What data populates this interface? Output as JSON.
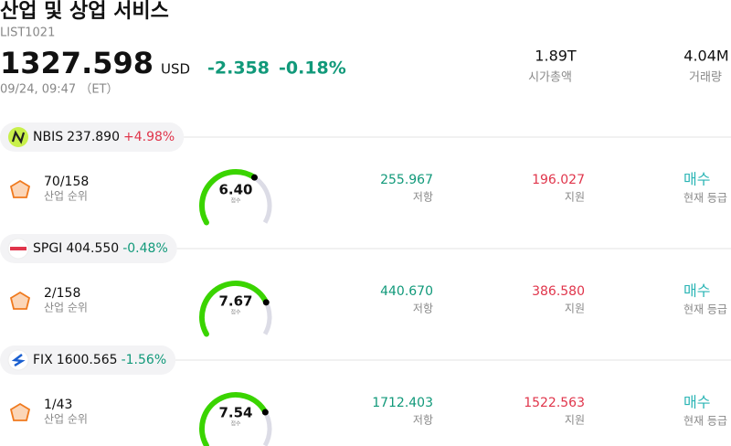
{
  "header": {
    "title": "산업 및 상업 서비스",
    "ticker": "LIST1021",
    "price": "1327.598",
    "currency": "USD",
    "change": "-2.358",
    "change_pct": "-0.18%",
    "timestamp": "09/24, 09:47 （ET）",
    "stats": [
      {
        "value": "1.89T",
        "label": "시가총액"
      },
      {
        "value": "4.04M",
        "label": "거래량"
      }
    ]
  },
  "score_range": [
    0,
    10
  ],
  "rows": [
    {
      "symbol": "NBIS",
      "price": "237.890",
      "change": "+4.98%",
      "rank": "70/158",
      "rank_label": "산업 순위",
      "score": {
        "value": 6.4,
        "label": "6.40"
      },
      "score_label": "점수",
      "resistance": "255.967",
      "resistance_label": "저항",
      "support": "196.027",
      "support_label": "지원",
      "rating": "매수",
      "rating_label": "현재 등급"
    },
    {
      "symbol": "SPGI",
      "price": "404.550",
      "change": "-0.48%",
      "rank": "2/158",
      "rank_label": "산업 순위",
      "score": {
        "value": 7.67,
        "label": "7.67"
      },
      "score_label": "점수",
      "resistance": "440.670",
      "resistance_label": "저항",
      "support": "386.580",
      "support_label": "지원",
      "rating": "매수",
      "rating_label": "현재 등급"
    },
    {
      "symbol": "FIX",
      "price": "1600.565",
      "change": "-1.56%",
      "rank": "1/43",
      "rank_label": "산업 순위",
      "score": {
        "value": 7.54,
        "label": "7.54"
      },
      "score_label": "점수",
      "resistance": "1712.403",
      "resistance_label": "저항",
      "support": "1522.563",
      "support_label": "지원",
      "rating": "매수",
      "rating_label": "현재 등급"
    }
  ]
}
